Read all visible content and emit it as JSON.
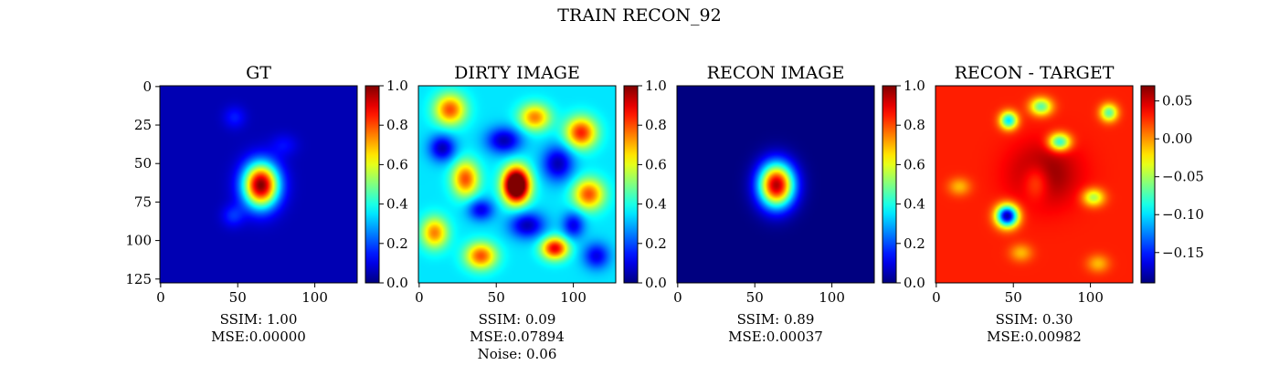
{
  "figure_title": "TRAIN RECON_92",
  "colormap": "jet",
  "colormap_stops": [
    "#00007f",
    "#0000ff",
    "#00ffff",
    "#7fff7f",
    "#ffff00",
    "#ff0000",
    "#7f0000"
  ],
  "chart_data": [
    {
      "type": "heatmap",
      "title": "GT",
      "image_size": [
        128,
        128
      ],
      "x_ticks": [
        0,
        50,
        100
      ],
      "y_ticks": [
        0,
        25,
        50,
        75,
        100,
        125
      ],
      "show_y_ticks": true,
      "colorbar": {
        "min": 0.0,
        "max": 1.0,
        "ticks": [
          "0.0",
          "0.2",
          "0.4",
          "0.6",
          "0.8",
          "1.0"
        ]
      },
      "background_value": 0.05,
      "blobs": [
        {
          "cx": 65,
          "cy": 64,
          "rx": 8,
          "ry": 10,
          "peak": 0.95
        },
        {
          "cx": 47,
          "cy": 84,
          "rx": 5,
          "ry": 5,
          "peak": 0.12
        },
        {
          "cx": 48,
          "cy": 20,
          "rx": 5,
          "ry": 5,
          "peak": 0.1
        },
        {
          "cx": 80,
          "cy": 38,
          "rx": 6,
          "ry": 5,
          "peak": 0.08
        }
      ],
      "caption": [
        "SSIM: 1.00",
        "MSE:0.00000"
      ]
    },
    {
      "type": "heatmap",
      "title": "DIRTY IMAGE",
      "image_size": [
        128,
        128
      ],
      "x_ticks": [
        0,
        50,
        100
      ],
      "y_ticks": [],
      "show_y_ticks": false,
      "colorbar": {
        "min": 0.0,
        "max": 1.0,
        "ticks": [
          "0.0",
          "0.2",
          "0.4",
          "0.6",
          "0.8",
          "1.0"
        ]
      },
      "background_value": 0.35,
      "blobs": [
        {
          "cx": 63,
          "cy": 64,
          "rx": 6,
          "ry": 8,
          "peak": 0.95
        },
        {
          "cx": 88,
          "cy": 105,
          "rx": 6,
          "ry": 5,
          "peak": 0.55
        },
        {
          "cx": 20,
          "cy": 15,
          "rx": 7,
          "ry": 7,
          "peak": 0.45
        },
        {
          "cx": 105,
          "cy": 30,
          "rx": 7,
          "ry": 7,
          "peak": 0.5
        },
        {
          "cx": 30,
          "cy": 60,
          "rx": 6,
          "ry": 8,
          "peak": 0.45
        },
        {
          "cx": 110,
          "cy": 70,
          "rx": 7,
          "ry": 7,
          "peak": 0.45
        },
        {
          "cx": 40,
          "cy": 110,
          "rx": 7,
          "ry": 6,
          "peak": 0.45
        },
        {
          "cx": 75,
          "cy": 20,
          "rx": 7,
          "ry": 6,
          "peak": 0.4
        },
        {
          "cx": 10,
          "cy": 95,
          "rx": 6,
          "ry": 7,
          "peak": 0.4
        },
        {
          "cx": 55,
          "cy": 35,
          "rx": 8,
          "ry": 6,
          "peak": -0.3
        },
        {
          "cx": 90,
          "cy": 50,
          "rx": 7,
          "ry": 8,
          "peak": -0.3
        },
        {
          "cx": 15,
          "cy": 40,
          "rx": 6,
          "ry": 6,
          "peak": -0.3
        },
        {
          "cx": 70,
          "cy": 90,
          "rx": 8,
          "ry": 6,
          "peak": -0.3
        },
        {
          "cx": 115,
          "cy": 110,
          "rx": 6,
          "ry": 6,
          "peak": -0.25
        },
        {
          "cx": 40,
          "cy": 80,
          "rx": 6,
          "ry": 5,
          "peak": -0.25
        },
        {
          "cx": 100,
          "cy": 90,
          "rx": 5,
          "ry": 6,
          "peak": -0.25
        }
      ],
      "caption": [
        "SSIM: 0.09",
        "MSE:0.07894",
        "Noise: 0.06"
      ]
    },
    {
      "type": "heatmap",
      "title": "RECON IMAGE",
      "image_size": [
        128,
        128
      ],
      "x_ticks": [
        0,
        50,
        100
      ],
      "y_ticks": [],
      "show_y_ticks": false,
      "colorbar": {
        "min": 0.0,
        "max": 1.0,
        "ticks": [
          "0.0",
          "0.2",
          "0.4",
          "0.6",
          "0.8",
          "1.0"
        ]
      },
      "background_value": 0.0,
      "blobs": [
        {
          "cx": 64,
          "cy": 64,
          "rx": 8,
          "ry": 10,
          "peak": 0.95
        }
      ],
      "caption": [
        "SSIM: 0.89",
        "MSE:0.00037"
      ]
    },
    {
      "type": "heatmap",
      "title": "RECON - TARGET",
      "image_size": [
        128,
        128
      ],
      "x_ticks": [
        0,
        50,
        100
      ],
      "y_ticks": [],
      "show_y_ticks": false,
      "colorbar": {
        "min": -0.19,
        "max": 0.07,
        "ticks": [
          "0.05",
          "0.00",
          "−0.05",
          "−0.10",
          "−0.15"
        ],
        "tick_values": [
          0.05,
          0.0,
          -0.05,
          -0.1,
          -0.15
        ]
      },
      "background_value": 0.03,
      "blobs": [
        {
          "cx": 46,
          "cy": 84,
          "rx": 5,
          "ry": 5,
          "peak": -0.21
        },
        {
          "cx": 47,
          "cy": 22,
          "rx": 4,
          "ry": 4,
          "peak": -0.13
        },
        {
          "cx": 80,
          "cy": 36,
          "rx": 5,
          "ry": 4,
          "peak": -0.12
        },
        {
          "cx": 68,
          "cy": 13,
          "rx": 5,
          "ry": 4,
          "peak": -0.1
        },
        {
          "cx": 112,
          "cy": 17,
          "rx": 4,
          "ry": 4,
          "peak": -0.1
        },
        {
          "cx": 102,
          "cy": 72,
          "rx": 5,
          "ry": 4,
          "peak": -0.08
        },
        {
          "cx": 65,
          "cy": 62,
          "rx": 6,
          "ry": 8,
          "peak": -0.04
        },
        {
          "cx": 70,
          "cy": 57,
          "rx": 15,
          "ry": 14,
          "peak": 0.04
        },
        {
          "cx": 15,
          "cy": 65,
          "rx": 5,
          "ry": 4,
          "peak": -0.04
        },
        {
          "cx": 55,
          "cy": 108,
          "rx": 5,
          "ry": 4,
          "peak": -0.04
        },
        {
          "cx": 105,
          "cy": 115,
          "rx": 5,
          "ry": 4,
          "peak": -0.04
        }
      ],
      "caption": [
        "SSIM: 0.30",
        "MSE:0.00982"
      ]
    }
  ]
}
